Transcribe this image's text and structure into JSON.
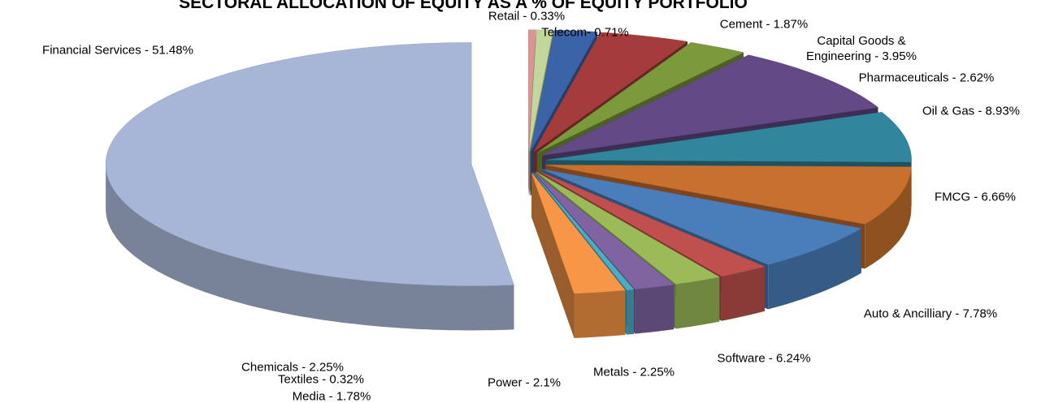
{
  "chart_data": {
    "type": "pie3d",
    "title": "SECTORAL ALLOCATION OF EQUITY AS A % OF EQUITY PORTFOLIO",
    "categories": [
      "Retail - 0.33%",
      "Telecom- 0.71%",
      "Cement - 1.87%",
      "Capital Goods & Engineering - 3.95%",
      "Pharmaceuticals - 2.62%",
      "Oil & Gas  - 8.93%",
      "FMCG - 6.66%",
      "Auto & Ancilliary - 7.78%",
      "Software - 6.24%",
      "Metals - 2.25%",
      "Power - 2.1%",
      "Media - 1.78%",
      "Textiles - 0.32%",
      "Chemicals - 2.25%",
      "Financial Services - 51.48%"
    ],
    "values": [
      0.33,
      0.71,
      1.87,
      3.95,
      2.62,
      8.93,
      6.66,
      7.78,
      6.24,
      2.25,
      2.1,
      1.78,
      0.32,
      2.25,
      51.48
    ],
    "colors": [
      "#d99594",
      "#c3d69b",
      "#3b64a8",
      "#a33c3a",
      "#7a9a3b",
      "#634a86",
      "#31859c",
      "#c8702e",
      "#4a7ebb",
      "#c0504d",
      "#9bbb59",
      "#8064a2",
      "#4bacc6",
      "#f79646",
      "#a7b6d6"
    ]
  }
}
